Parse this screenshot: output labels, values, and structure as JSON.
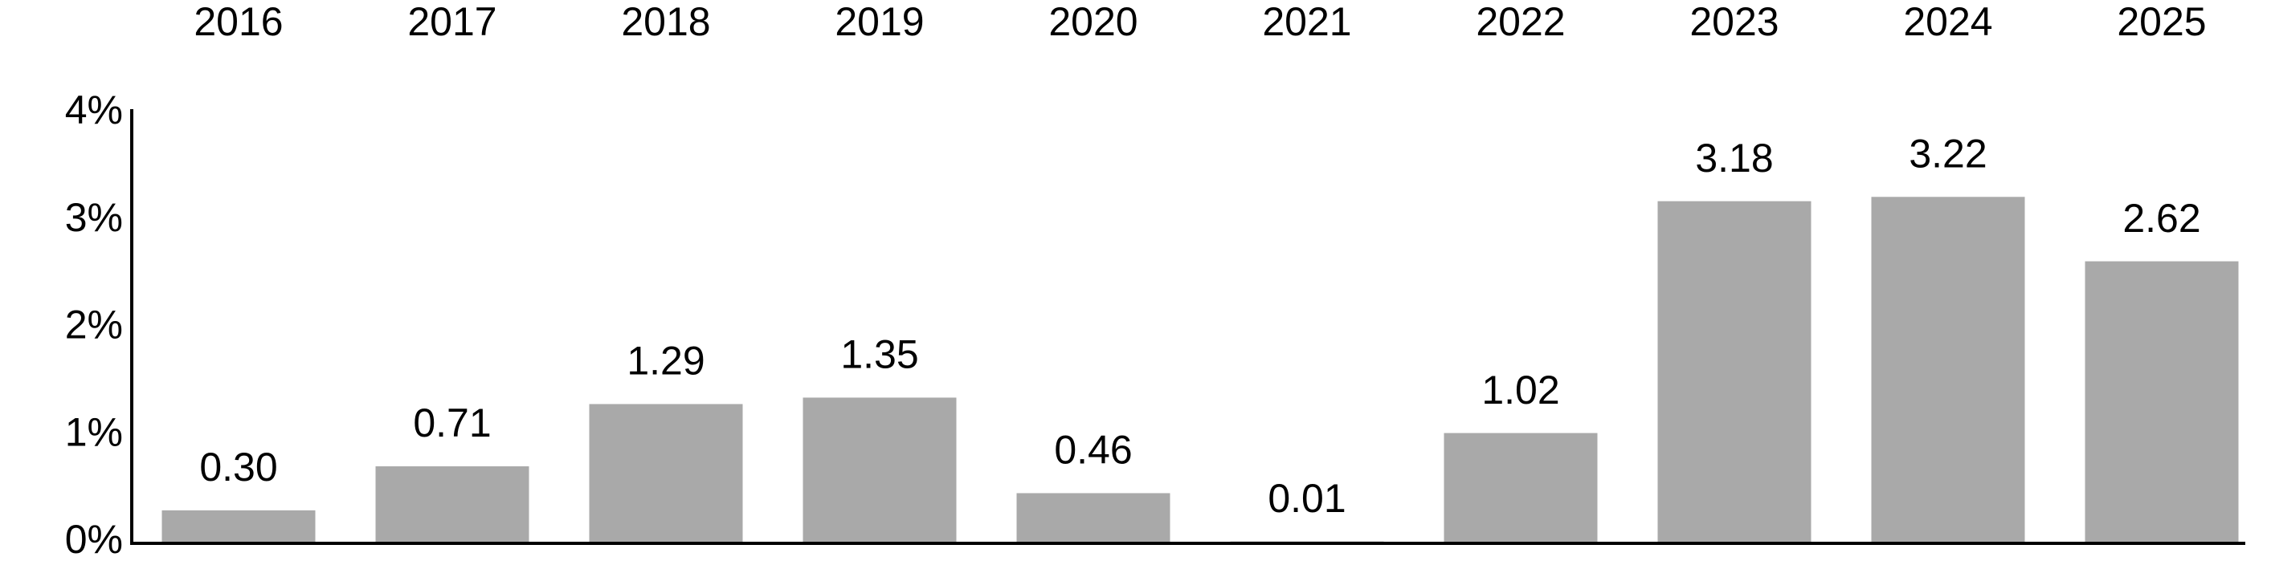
{
  "chart_data": {
    "type": "bar",
    "categories": [
      "2016",
      "2017",
      "2018",
      "2019",
      "2020",
      "2021",
      "2022",
      "2023",
      "2024",
      "2025"
    ],
    "values": [
      0.3,
      0.71,
      1.29,
      1.35,
      0.46,
      0.01,
      1.02,
      3.18,
      3.22,
      2.62
    ],
    "value_labels": [
      "0.30",
      "0.71",
      "1.29",
      "1.35",
      "0.46",
      "0.01",
      "1.02",
      "3.18",
      "3.22",
      "2.62"
    ],
    "color": "#a9a9a9",
    "ylim": [
      0,
      4
    ],
    "yticks": [
      {
        "value": 0,
        "label": "0%"
      },
      {
        "value": 1,
        "label": "1%"
      },
      {
        "value": 2,
        "label": "2%"
      },
      {
        "value": 3,
        "label": "3%"
      },
      {
        "value": 4,
        "label": "4%"
      }
    ],
    "grid": false
  }
}
